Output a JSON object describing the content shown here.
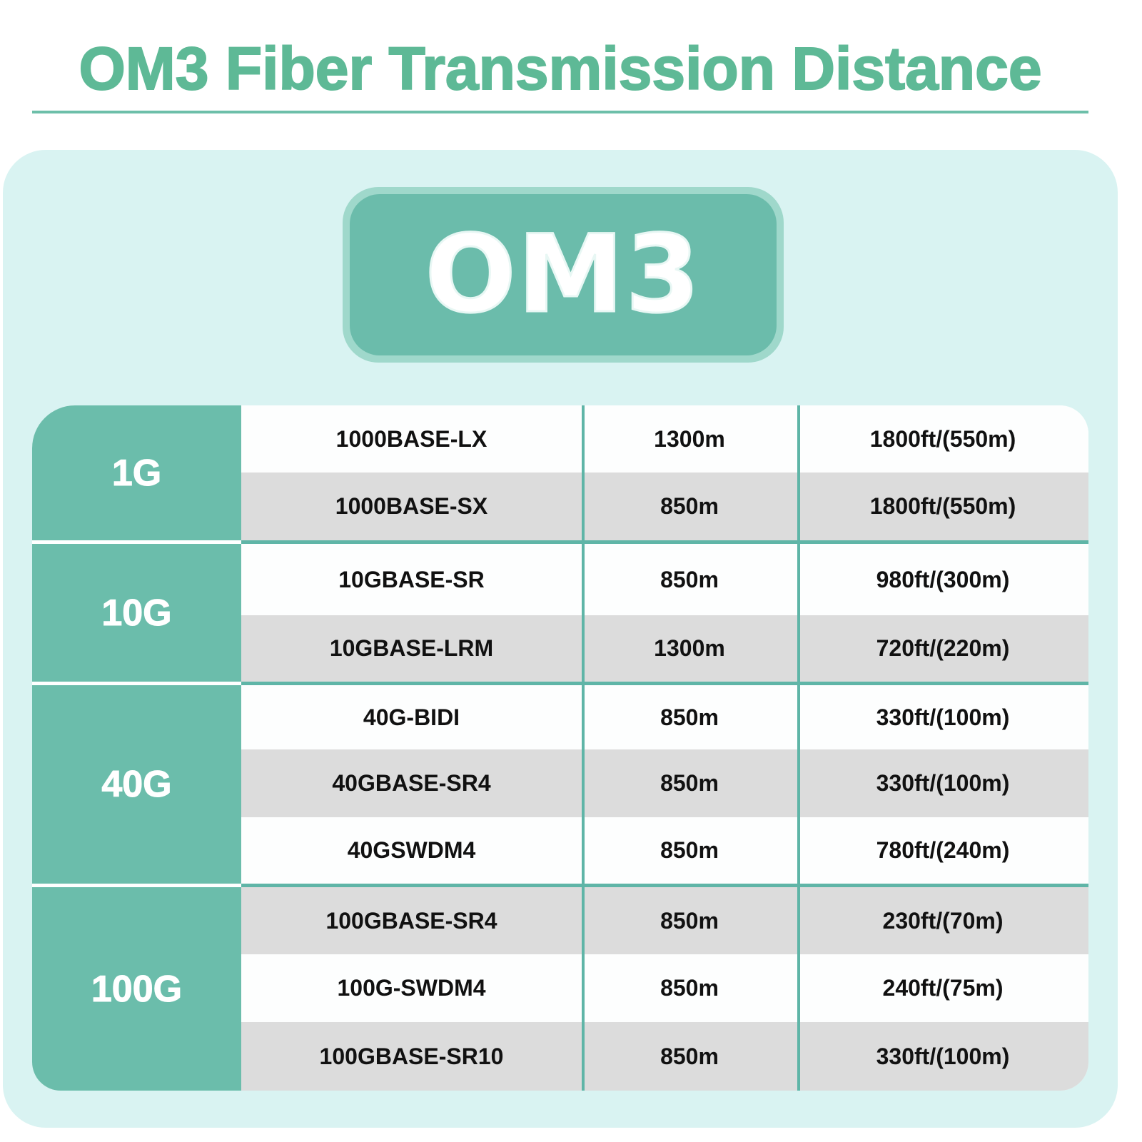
{
  "title": "OM3 Fiber Transmission Distance",
  "badge": "OM3",
  "colors": {
    "accent": "#6bbdab",
    "title": "#5eb996",
    "panel": "#d9f3f2",
    "row_alt": "#dcdcdc"
  },
  "groups": [
    {
      "label": "1G",
      "rows": [
        {
          "standard": "1000BASE-LX",
          "wavelength": "1300m",
          "distance": "1800ft/(550m)"
        },
        {
          "standard": "1000BASE-SX",
          "wavelength": "850m",
          "distance": "1800ft/(550m)"
        }
      ]
    },
    {
      "label": "10G",
      "rows": [
        {
          "standard": "10GBASE-SR",
          "wavelength": "850m",
          "distance": "980ft/(300m)"
        },
        {
          "standard": "10GBASE-LRM",
          "wavelength": "1300m",
          "distance": "720ft/(220m)"
        }
      ]
    },
    {
      "label": "40G",
      "rows": [
        {
          "standard": "40G-BIDI",
          "wavelength": "850m",
          "distance": "330ft/(100m)"
        },
        {
          "standard": "40GBASE-SR4",
          "wavelength": "850m",
          "distance": "330ft/(100m)"
        },
        {
          "standard": "40GSWDM4",
          "wavelength": "850m",
          "distance": "780ft/(240m)"
        }
      ]
    },
    {
      "label": "100G",
      "rows": [
        {
          "standard": "100GBASE-SR4",
          "wavelength": "850m",
          "distance": "230ft/(70m)"
        },
        {
          "standard": "100G-SWDM4",
          "wavelength": "850m",
          "distance": "240ft/(75m)"
        },
        {
          "standard": "100GBASE-SR10",
          "wavelength": "850m",
          "distance": "330ft/(100m)"
        }
      ]
    }
  ]
}
